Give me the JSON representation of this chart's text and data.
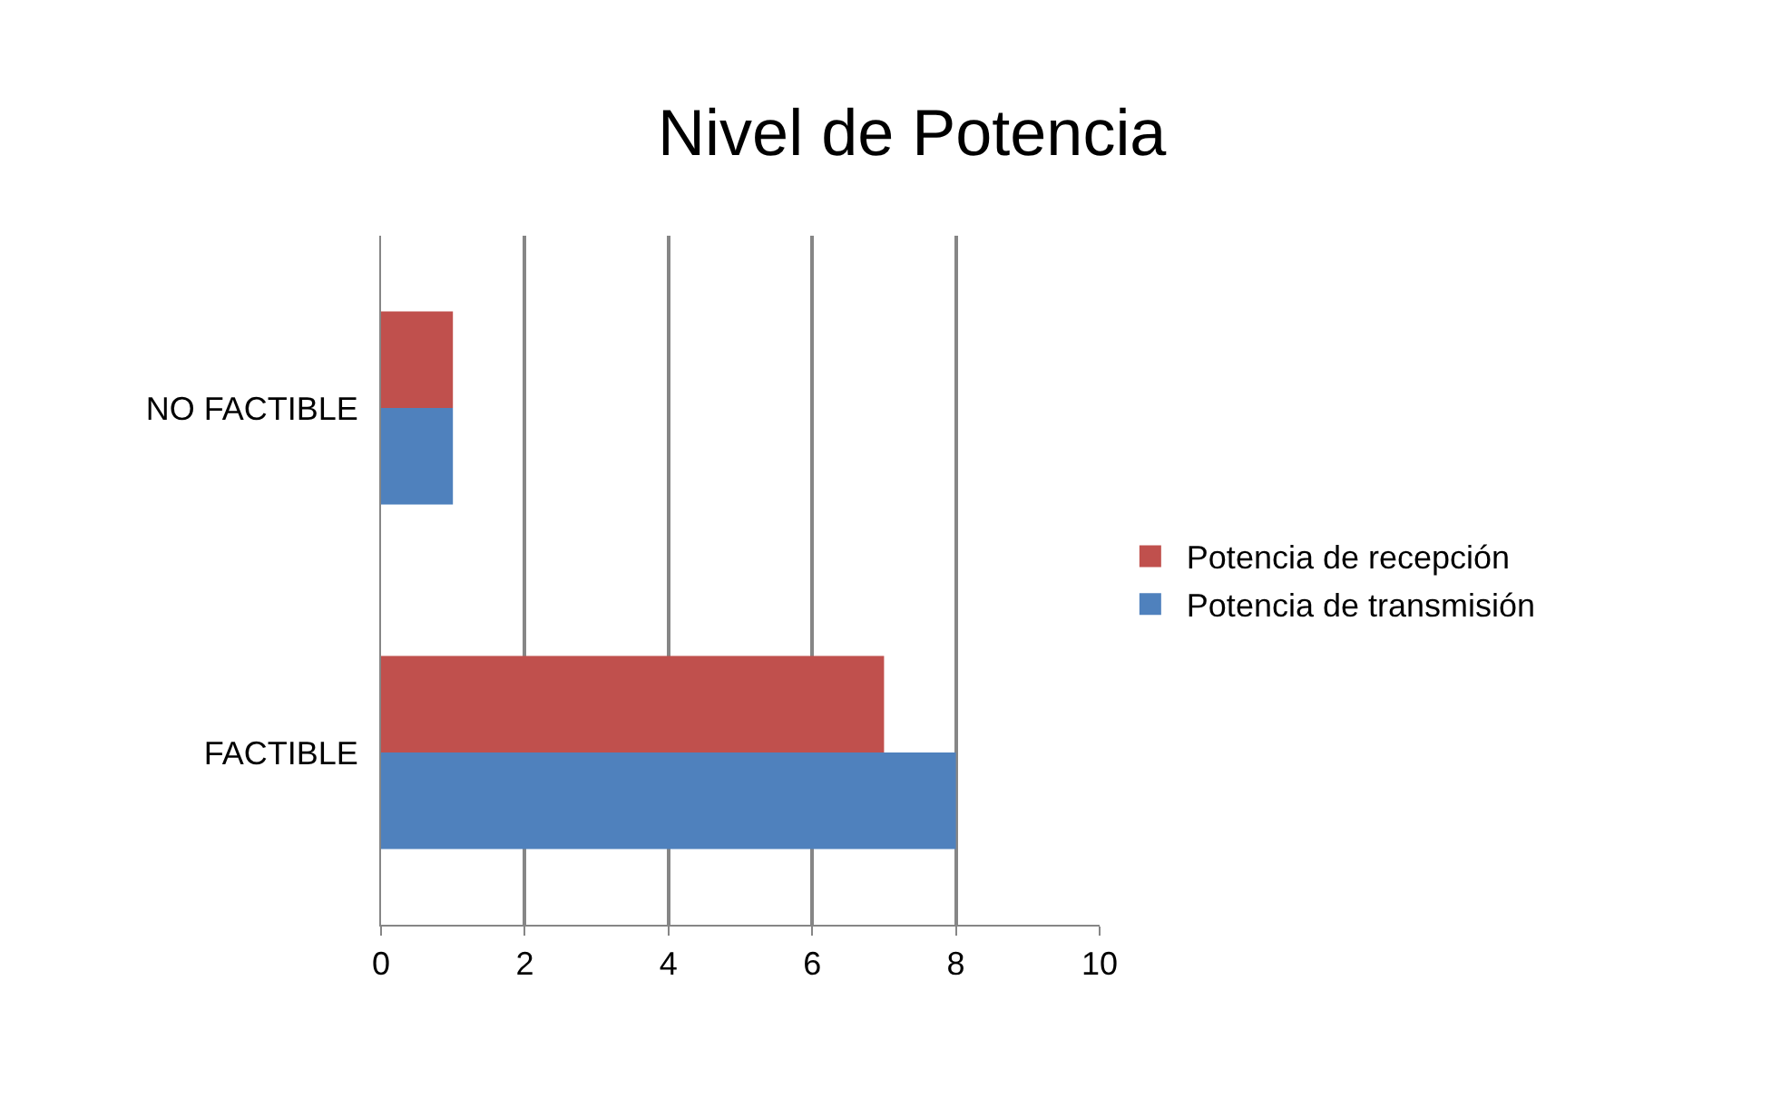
{
  "chart_data": {
    "type": "bar",
    "orientation": "horizontal",
    "title": "Nivel de Potencia",
    "categories": [
      "NO FACTIBLE",
      "FACTIBLE"
    ],
    "series": [
      {
        "name": "Potencia de recepción",
        "color": "#c0504d",
        "values": [
          1,
          7
        ]
      },
      {
        "name": "Potencia de transmisión",
        "color": "#4f81bd",
        "values": [
          1,
          8
        ]
      }
    ],
    "xlim": [
      0,
      10
    ],
    "xticks": [
      0,
      2,
      4,
      6,
      8,
      10
    ],
    "grid": "x",
    "legend": "right"
  }
}
